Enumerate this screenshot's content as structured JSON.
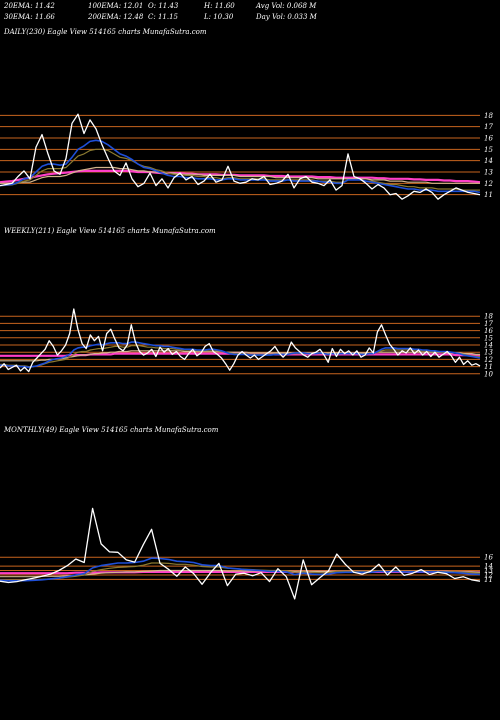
{
  "stats": {
    "row1": [
      "20EMA: 11.42",
      "100EMA: 12.01",
      "O: 11.43",
      "H: 11.60",
      "Avg Vol: 0.068 M"
    ],
    "row2": [
      "30EMA: 11.66",
      "200EMA: 12.48",
      "C: 11.15",
      "L: 10.30",
      "Day Vol: 0.033 M"
    ]
  },
  "panels": {
    "daily": {
      "label": "DAILY(230) Eagle   View  514165 charts MunafaSutra.com"
    },
    "weekly": {
      "label": "WEEKLY(211) Eagle   View  514165 charts MunafaSutra.com"
    },
    "monthly": {
      "label": "MONTHLY(49) Eagle   View  514165 charts MunafaSutra.com"
    }
  },
  "colors": {
    "price": "#ffffff",
    "ema20": "#1e4fd8",
    "ema30": "#8b7a30",
    "ema100": "#d2b48c",
    "ema200": "#ff3fc8",
    "hlines": "#c8641e"
  },
  "chart_data": [
    {
      "type": "line",
      "name": "daily",
      "yticks": [
        11,
        12,
        13,
        14,
        15,
        16,
        17,
        18
      ],
      "ylim": [
        10,
        19
      ],
      "price": [
        11.8,
        11.9,
        12.0,
        12.6,
        13.1,
        12.4,
        15.2,
        16.3,
        14.6,
        13.1,
        12.8,
        14.2,
        17.3,
        18.1,
        16.4,
        17.6,
        16.8,
        15.4,
        14.2,
        13.1,
        12.7,
        13.8,
        12.4,
        11.7,
        12.0,
        12.9,
        11.8,
        12.4,
        11.6,
        12.5,
        12.9,
        12.3,
        12.6,
        11.9,
        12.2,
        12.8,
        12.1,
        12.3,
        13.5,
        12.2,
        12.0,
        12.1,
        12.4,
        12.3,
        12.6,
        11.9,
        12.0,
        12.2,
        12.8,
        11.6,
        12.4,
        12.6,
        12.1,
        12.0,
        11.8,
        12.3,
        11.4,
        11.8,
        14.6,
        12.6,
        12.4,
        12.0,
        11.5,
        11.9,
        11.6,
        11.0,
        11.1,
        10.6,
        10.9,
        11.3,
        11.2,
        11.5,
        11.2,
        10.6,
        11.0,
        11.3,
        11.6,
        11.4,
        11.2,
        11.1,
        11.0
      ],
      "ema20": [
        11.8,
        11.85,
        11.9,
        12.1,
        12.4,
        12.5,
        13.0,
        13.5,
        13.7,
        13.7,
        13.6,
        13.7,
        14.3,
        15.0,
        15.3,
        15.7,
        15.8,
        15.7,
        15.4,
        15.0,
        14.6,
        14.4,
        14.1,
        13.7,
        13.4,
        13.3,
        13.1,
        12.9,
        12.7,
        12.6,
        12.6,
        12.5,
        12.5,
        12.4,
        12.4,
        12.4,
        12.3,
        12.3,
        12.4,
        12.4,
        12.3,
        12.3,
        12.3,
        12.3,
        12.3,
        12.2,
        12.2,
        12.2,
        12.3,
        12.2,
        12.2,
        12.2,
        12.2,
        12.2,
        12.1,
        12.1,
        12.0,
        12.0,
        12.3,
        12.3,
        12.3,
        12.2,
        12.1,
        12.0,
        11.9,
        11.8,
        11.7,
        11.6,
        11.5,
        11.5,
        11.4,
        11.4,
        11.4,
        11.3,
        11.3,
        11.3,
        11.3,
        11.3,
        11.3,
        11.3,
        11.2
      ],
      "ema30": [
        11.8,
        11.82,
        11.86,
        12.0,
        12.2,
        12.3,
        12.7,
        13.1,
        13.3,
        13.3,
        13.3,
        13.4,
        13.9,
        14.4,
        14.6,
        14.9,
        15.0,
        15.0,
        14.9,
        14.6,
        14.3,
        14.2,
        14.0,
        13.7,
        13.5,
        13.4,
        13.2,
        13.1,
        12.9,
        12.8,
        12.8,
        12.7,
        12.7,
        12.6,
        12.6,
        12.5,
        12.5,
        12.4,
        12.5,
        12.5,
        12.4,
        12.4,
        12.4,
        12.4,
        12.4,
        12.3,
        12.3,
        12.3,
        12.3,
        12.3,
        12.3,
        12.3,
        12.3,
        12.2,
        12.2,
        12.2,
        12.1,
        12.1,
        12.3,
        12.3,
        12.3,
        12.2,
        12.2,
        12.1,
        12.0,
        11.9,
        11.9,
        11.8,
        11.7,
        11.7,
        11.6,
        11.6,
        11.6,
        11.5,
        11.5,
        11.5,
        11.5,
        11.4,
        11.4,
        11.4,
        11.4
      ],
      "ema100": [
        12.0,
        12.0,
        12.0,
        12.05,
        12.1,
        12.1,
        12.3,
        12.5,
        12.6,
        12.6,
        12.6,
        12.7,
        12.9,
        13.1,
        13.2,
        13.3,
        13.4,
        13.4,
        13.4,
        13.4,
        13.3,
        13.3,
        13.2,
        13.1,
        13.1,
        13.0,
        13.0,
        12.9,
        12.9,
        12.9,
        12.8,
        12.8,
        12.8,
        12.8,
        12.7,
        12.7,
        12.7,
        12.7,
        12.7,
        12.7,
        12.6,
        12.6,
        12.6,
        12.6,
        12.6,
        12.6,
        12.5,
        12.5,
        12.5,
        12.5,
        12.5,
        12.5,
        12.5,
        12.4,
        12.4,
        12.4,
        12.4,
        12.4,
        12.4,
        12.4,
        12.4,
        12.4,
        12.3,
        12.3,
        12.3,
        12.2,
        12.2,
        12.2,
        12.1,
        12.1,
        12.1,
        12.1,
        12.0,
        12.0,
        12.0,
        12.0,
        12.0,
        12.0,
        12.0,
        12.0,
        12.0
      ],
      "ema200": [
        12.1,
        12.15,
        12.2,
        12.3,
        12.4,
        12.5,
        12.6,
        12.7,
        12.8,
        12.85,
        12.9,
        12.95,
        13.0,
        13.05,
        13.1,
        13.1,
        13.1,
        13.1,
        13.1,
        13.1,
        13.1,
        13.1,
        13.05,
        13.0,
        13.0,
        13.0,
        12.95,
        12.9,
        12.9,
        12.9,
        12.9,
        12.85,
        12.85,
        12.8,
        12.8,
        12.8,
        12.8,
        12.75,
        12.75,
        12.75,
        12.7,
        12.7,
        12.7,
        12.7,
        12.7,
        12.65,
        12.65,
        12.65,
        12.6,
        12.6,
        12.6,
        12.6,
        12.6,
        12.55,
        12.55,
        12.55,
        12.5,
        12.5,
        12.5,
        12.5,
        12.5,
        12.5,
        12.5,
        12.45,
        12.45,
        12.4,
        12.4,
        12.4,
        12.4,
        12.35,
        12.35,
        12.3,
        12.3,
        12.3,
        12.25,
        12.25,
        12.2,
        12.2,
        12.2,
        12.15,
        12.1
      ]
    },
    {
      "type": "line",
      "name": "weekly",
      "yticks": [
        10,
        11,
        12,
        13,
        14,
        15,
        16,
        17,
        18
      ],
      "ylim": [
        9,
        19
      ],
      "price": [
        10.8,
        11.4,
        10.6,
        10.9,
        11.2,
        10.4,
        10.9,
        10.3,
        11.6,
        12.2,
        12.8,
        13.4,
        14.6,
        13.8,
        12.6,
        13.2,
        14.0,
        15.6,
        19.0,
        16.2,
        14.2,
        13.5,
        15.4,
        14.6,
        15.2,
        13.2,
        15.6,
        16.2,
        14.8,
        13.6,
        13.2,
        14.0,
        16.8,
        14.4,
        13.1,
        12.6,
        12.9,
        13.4,
        12.4,
        13.7,
        13.0,
        13.5,
        12.7,
        13.1,
        12.4,
        12.0,
        12.8,
        13.4,
        12.5,
        12.9,
        13.8,
        14.2,
        13.1,
        12.7,
        12.2,
        11.4,
        10.5,
        11.4,
        12.6,
        13.1,
        12.6,
        12.2,
        12.6,
        12.0,
        12.4,
        12.8,
        13.2,
        13.8,
        12.9,
        12.3,
        12.9,
        14.4,
        13.6,
        13.1,
        12.6,
        12.3,
        12.8,
        13.0,
        13.4,
        12.6,
        11.6,
        13.5,
        12.4,
        13.4,
        12.8,
        13.2,
        12.6,
        13.2,
        12.3,
        12.6,
        13.6,
        12.9,
        15.8,
        16.8,
        15.4,
        14.1,
        13.4,
        12.6,
        13.2,
        12.9,
        13.6,
        12.8,
        13.3,
        12.6,
        13.1,
        12.4,
        13.0,
        12.3,
        12.7,
        13.1,
        12.5,
        11.6,
        12.3,
        11.3,
        11.8,
        11.2,
        11.4,
        11.1
      ],
      "ema20": [
        11.2,
        11.2,
        11.1,
        11.1,
        11.1,
        11.0,
        11.0,
        10.9,
        11.0,
        11.1,
        11.3,
        11.5,
        11.8,
        12.0,
        12.1,
        12.2,
        12.4,
        12.7,
        13.3,
        13.6,
        13.7,
        13.7,
        13.9,
        14.0,
        14.1,
        14.0,
        14.2,
        14.3,
        14.3,
        14.3,
        14.2,
        14.2,
        14.4,
        14.4,
        14.3,
        14.2,
        14.1,
        14.0,
        13.9,
        13.9,
        13.8,
        13.8,
        13.7,
        13.6,
        13.5,
        13.4,
        13.4,
        13.4,
        13.3,
        13.3,
        13.3,
        13.4,
        13.4,
        13.3,
        13.2,
        13.0,
        12.8,
        12.7,
        12.7,
        12.7,
        12.7,
        12.6,
        12.6,
        12.6,
        12.6,
        12.6,
        12.6,
        12.7,
        12.7,
        12.7,
        12.7,
        12.8,
        12.9,
        12.9,
        12.9,
        12.8,
        12.8,
        12.8,
        12.9,
        12.8,
        12.7,
        12.8,
        12.7,
        12.8,
        12.8,
        12.8,
        12.8,
        12.8,
        12.7,
        12.7,
        12.8,
        12.8,
        13.1,
        13.4,
        13.6,
        13.6,
        13.6,
        13.5,
        13.5,
        13.5,
        13.5,
        13.4,
        13.4,
        13.3,
        13.3,
        13.2,
        13.2,
        13.1,
        13.1,
        13.1,
        13.0,
        12.9,
        12.8,
        12.6,
        12.5,
        12.4,
        12.3,
        12.2
      ],
      "ema30": [
        11.3,
        11.3,
        11.2,
        11.2,
        11.2,
        11.1,
        11.1,
        11.0,
        11.0,
        11.1,
        11.2,
        11.4,
        11.6,
        11.7,
        11.8,
        11.9,
        12.0,
        12.3,
        12.7,
        13.0,
        13.1,
        13.1,
        13.3,
        13.4,
        13.5,
        13.5,
        13.6,
        13.7,
        13.8,
        13.8,
        13.7,
        13.7,
        13.9,
        13.9,
        13.9,
        13.8,
        13.7,
        13.7,
        13.6,
        13.6,
        13.5,
        13.5,
        13.5,
        13.4,
        13.4,
        13.3,
        13.3,
        13.3,
        13.2,
        13.2,
        13.2,
        13.2,
        13.2,
        13.2,
        13.1,
        13.0,
        12.9,
        12.8,
        12.8,
        12.8,
        12.8,
        12.7,
        12.7,
        12.7,
        12.7,
        12.7,
        12.7,
        12.7,
        12.7,
        12.7,
        12.7,
        12.8,
        12.8,
        12.8,
        12.8,
        12.8,
        12.8,
        12.8,
        12.8,
        12.8,
        12.7,
        12.8,
        12.7,
        12.8,
        12.8,
        12.8,
        12.8,
        12.8,
        12.7,
        12.7,
        12.8,
        12.8,
        13.0,
        13.2,
        13.3,
        13.3,
        13.3,
        13.3,
        13.3,
        13.3,
        13.3,
        13.2,
        13.2,
        13.2,
        13.2,
        13.1,
        13.1,
        13.1,
        13.0,
        13.0,
        13.0,
        12.9,
        12.8,
        12.7,
        12.6,
        12.5,
        12.4,
        12.4
      ],
      "ema100": [
        11.8,
        11.8,
        11.8,
        11.8,
        11.8,
        11.8,
        11.8,
        11.8,
        11.8,
        11.8,
        11.9,
        11.9,
        12.0,
        12.0,
        12.1,
        12.1,
        12.2,
        12.3,
        12.4,
        12.5,
        12.6,
        12.6,
        12.7,
        12.8,
        12.8,
        12.9,
        12.9,
        13.0,
        13.0,
        13.1,
        13.1,
        13.1,
        13.2,
        13.2,
        13.2,
        13.2,
        13.2,
        13.2,
        13.2,
        13.2,
        13.2,
        13.2,
        13.2,
        13.2,
        13.2,
        13.1,
        13.1,
        13.1,
        13.1,
        13.1,
        13.1,
        13.1,
        13.1,
        13.1,
        13.1,
        13.0,
        13.0,
        13.0,
        13.0,
        13.0,
        13.0,
        12.9,
        12.9,
        12.9,
        12.9,
        12.9,
        12.9,
        12.9,
        12.9,
        12.9,
        12.9,
        12.9,
        12.9,
        12.9,
        12.9,
        12.9,
        12.9,
        12.9,
        12.9,
        12.9,
        12.9,
        12.9,
        12.9,
        12.9,
        12.9,
        12.9,
        12.9,
        12.9,
        12.9,
        12.9,
        12.9,
        12.9,
        13.0,
        13.0,
        13.0,
        13.0,
        13.0,
        13.0,
        13.0,
        13.0,
        13.0,
        13.0,
        13.0,
        13.0,
        13.0,
        13.0,
        13.0,
        13.0,
        13.0,
        12.9,
        12.9,
        12.9,
        12.9,
        12.8,
        12.8,
        12.8,
        12.7,
        12.7
      ],
      "ema200": [
        12.5,
        12.5,
        12.5,
        12.5,
        12.5,
        12.5,
        12.5,
        12.5,
        12.5,
        12.5,
        12.5,
        12.5,
        12.5,
        12.5,
        12.5,
        12.5,
        12.5,
        12.6,
        12.6,
        12.6,
        12.6,
        12.6,
        12.7,
        12.7,
        12.7,
        12.7,
        12.7,
        12.7,
        12.8,
        12.8,
        12.8,
        12.8,
        12.8,
        12.8,
        12.8,
        12.8,
        12.8,
        12.8,
        12.8,
        12.8,
        12.8,
        12.8,
        12.8,
        12.8,
        12.8,
        12.8,
        12.8,
        12.8,
        12.8,
        12.8,
        12.8,
        12.8,
        12.8,
        12.8,
        12.8,
        12.8,
        12.8,
        12.8,
        12.8,
        12.8,
        12.8,
        12.7,
        12.7,
        12.7,
        12.7,
        12.7,
        12.7,
        12.7,
        12.7,
        12.7,
        12.7,
        12.7,
        12.7,
        12.7,
        12.7,
        12.7,
        12.7,
        12.7,
        12.7,
        12.7,
        12.7,
        12.7,
        12.7,
        12.7,
        12.7,
        12.7,
        12.7,
        12.7,
        12.7,
        12.7,
        12.7,
        12.7,
        12.7,
        12.7,
        12.7,
        12.7,
        12.7,
        12.7,
        12.7,
        12.7,
        12.7,
        12.7,
        12.7,
        12.7,
        12.7,
        12.7,
        12.7,
        12.7,
        12.7,
        12.7,
        12.7,
        12.6,
        12.6,
        12.6,
        12.6,
        12.6,
        12.6,
        12.5
      ]
    },
    {
      "type": "line",
      "name": "monthly",
      "yticks": [
        11,
        12,
        13,
        14,
        16
      ],
      "ylim": [
        5,
        28
      ],
      "price": [
        10.6,
        10.3,
        10.5,
        10.9,
        11.3,
        11.7,
        12.2,
        13.0,
        14.1,
        15.6,
        14.8,
        27.0,
        19.0,
        17.2,
        17.1,
        15.4,
        14.9,
        18.8,
        22.3,
        14.6,
        13.3,
        11.7,
        13.8,
        12.3,
        9.9,
        12.5,
        14.6,
        9.6,
        12.2,
        12.4,
        11.8,
        12.5,
        10.5,
        13.4,
        11.6,
        6.6,
        15.4,
        9.8,
        11.4,
        12.9,
        16.7,
        14.4,
        12.6,
        12.2,
        12.8,
        14.4,
        12.0,
        13.8,
        11.9,
        12.4,
        13.2,
        12.1,
        12.6,
        12.3,
        11.2,
        11.6,
        10.9,
        10.6
      ],
      "ema20": [
        10.8,
        10.7,
        10.7,
        10.7,
        10.8,
        10.9,
        11.1,
        11.3,
        11.6,
        12.0,
        12.3,
        13.6,
        14.1,
        14.4,
        14.7,
        14.7,
        14.8,
        15.1,
        15.8,
        15.7,
        15.5,
        15.1,
        15.0,
        14.8,
        14.3,
        14.1,
        14.1,
        13.6,
        13.4,
        13.2,
        13.1,
        13.0,
        12.8,
        12.8,
        12.7,
        12.1,
        12.4,
        12.2,
        12.1,
        12.2,
        12.5,
        12.6,
        12.6,
        12.6,
        12.6,
        12.8,
        12.7,
        12.8,
        12.7,
        12.7,
        12.7,
        12.7,
        12.7,
        12.6,
        12.5,
        12.4,
        12.2,
        12.1
      ],
      "ema30": [
        10.9,
        10.9,
        10.9,
        10.9,
        10.9,
        11.0,
        11.1,
        11.3,
        11.5,
        11.7,
        12.0,
        12.8,
        13.2,
        13.5,
        13.7,
        13.8,
        13.9,
        14.2,
        14.7,
        14.7,
        14.6,
        14.4,
        14.4,
        14.2,
        13.9,
        13.8,
        13.8,
        13.5,
        13.4,
        13.3,
        13.2,
        13.1,
        13.0,
        13.0,
        12.9,
        12.6,
        12.7,
        12.6,
        12.5,
        12.5,
        12.8,
        12.8,
        12.8,
        12.8,
        12.8,
        12.9,
        12.8,
        12.9,
        12.8,
        12.8,
        12.8,
        12.8,
        12.8,
        12.7,
        12.7,
        12.6,
        12.5,
        12.4
      ],
      "ema100": [
        11.6,
        11.6,
        11.6,
        11.6,
        11.6,
        11.7,
        11.7,
        11.7,
        11.8,
        11.9,
        12.0,
        12.2,
        12.4,
        12.5,
        12.6,
        12.7,
        12.7,
        12.8,
        12.9,
        13.0,
        13.0,
        13.0,
        13.0,
        13.0,
        13.0,
        13.0,
        13.0,
        12.9,
        12.9,
        12.9,
        12.9,
        12.9,
        12.9,
        12.9,
        12.9,
        12.8,
        12.8,
        12.8,
        12.8,
        12.8,
        12.8,
        12.8,
        12.8,
        12.8,
        12.8,
        12.8,
        12.8,
        12.8,
        12.8,
        12.8,
        12.8,
        12.8,
        12.8,
        12.8,
        12.7,
        12.7,
        12.7,
        12.6
      ],
      "ema200": [
        12.4,
        12.4,
        12.4,
        12.4,
        12.4,
        12.4,
        12.4,
        12.4,
        12.4,
        12.5,
        12.5,
        12.5,
        12.6,
        12.6,
        12.6,
        12.6,
        12.6,
        12.7,
        12.7,
        12.7,
        12.7,
        12.7,
        12.7,
        12.7,
        12.7,
        12.7,
        12.7,
        12.7,
        12.7,
        12.7,
        12.7,
        12.7,
        12.7,
        12.7,
        12.7,
        12.7,
        12.7,
        12.7,
        12.7,
        12.7,
        12.7,
        12.7,
        12.7,
        12.7,
        12.7,
        12.7,
        12.7,
        12.7,
        12.7,
        12.7,
        12.7,
        12.7,
        12.7,
        12.7,
        12.6,
        12.6,
        12.6,
        12.6
      ]
    }
  ]
}
